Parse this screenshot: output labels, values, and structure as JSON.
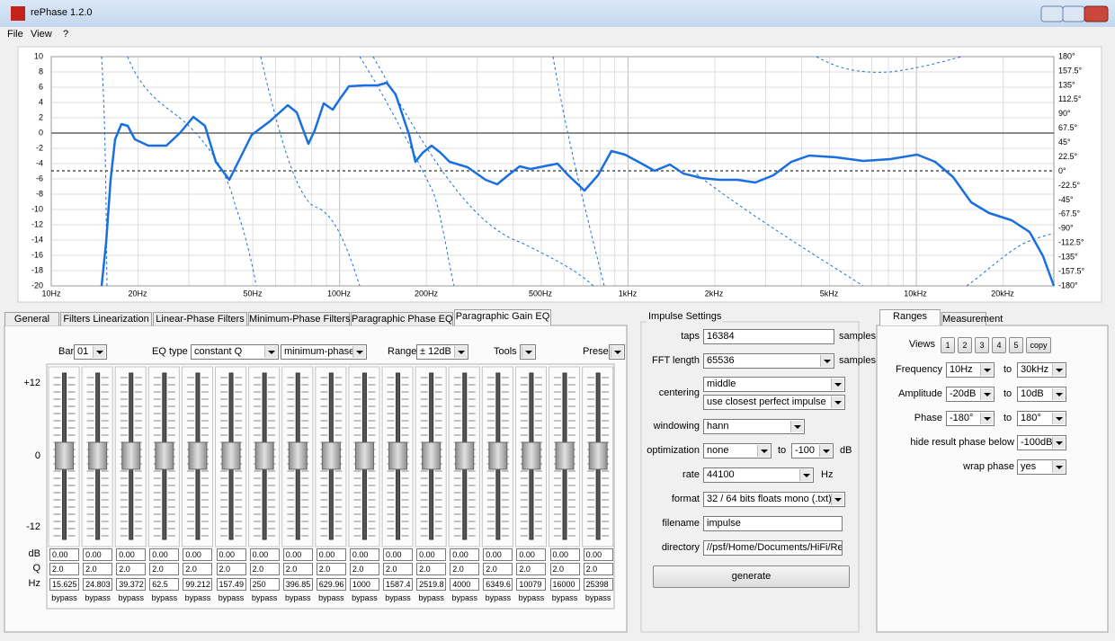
{
  "window": {
    "title": "rePhase 1.2.0",
    "menu": [
      "File",
      "View",
      "?"
    ]
  },
  "graph": {
    "amplitude_labels": [
      "10",
      "8",
      "6",
      "4",
      "2",
      "0",
      "-2",
      "-4",
      "-6",
      "-8",
      "-10",
      "-12",
      "-14",
      "-16",
      "-18",
      "-20"
    ],
    "phase_labels": [
      "180°",
      "157.5°",
      "135°",
      "112.5°",
      "90°",
      "67.5°",
      "45°",
      "22.5°",
      "0°",
      "-22.5°",
      "-45°",
      "-67.5°",
      "-90°",
      "-112.5°",
      "-135°",
      "-157.5°",
      "-180°"
    ],
    "frequency_labels": [
      "10Hz",
      "20Hz",
      "50Hz",
      "100Hz",
      "200Hz",
      "500Hz",
      "1kHz",
      "2kHz",
      "5kHz",
      "10kHz",
      "20kHz"
    ]
  },
  "tabs": [
    "General",
    "Filters Linearization",
    "Linear-Phase Filters",
    "Minimum-Phase Filters",
    "Paragraphic Phase EQ",
    "Paragraphic Gain EQ"
  ],
  "eq": {
    "bank_label": "Bank",
    "bank": "01",
    "eq_type_label": "EQ type",
    "eq_type": "constant Q",
    "phase_mode": "minimum-phase",
    "range_label": "Range",
    "range": "± 12dB",
    "tools": "Tools",
    "presets": "Presets",
    "scale": [
      "+12",
      "0",
      "-12"
    ],
    "row_labels": [
      "dB",
      "Q",
      "Hz"
    ],
    "bands": [
      {
        "db": "0.00",
        "q": "2.0",
        "hz": "15.625",
        "bypass": "bypass"
      },
      {
        "db": "0.00",
        "q": "2.0",
        "hz": "24.803",
        "bypass": "bypass"
      },
      {
        "db": "0.00",
        "q": "2.0",
        "hz": "39.372",
        "bypass": "bypass"
      },
      {
        "db": "0.00",
        "q": "2.0",
        "hz": "62.5",
        "bypass": "bypass"
      },
      {
        "db": "0.00",
        "q": "2.0",
        "hz": "99.212",
        "bypass": "bypass"
      },
      {
        "db": "0.00",
        "q": "2.0",
        "hz": "157.49",
        "bypass": "bypass"
      },
      {
        "db": "0.00",
        "q": "2.0",
        "hz": "250",
        "bypass": "bypass"
      },
      {
        "db": "0.00",
        "q": "2.0",
        "hz": "396.85",
        "bypass": "bypass"
      },
      {
        "db": "0.00",
        "q": "2.0",
        "hz": "629.96",
        "bypass": "bypass"
      },
      {
        "db": "0.00",
        "q": "2.0",
        "hz": "1000",
        "bypass": "bypass"
      },
      {
        "db": "0.00",
        "q": "2.0",
        "hz": "1587.4",
        "bypass": "bypass"
      },
      {
        "db": "0.00",
        "q": "2.0",
        "hz": "2519.8",
        "bypass": "bypass"
      },
      {
        "db": "0.00",
        "q": "2.0",
        "hz": "4000",
        "bypass": "bypass"
      },
      {
        "db": "0.00",
        "q": "2.0",
        "hz": "6349.6",
        "bypass": "bypass"
      },
      {
        "db": "0.00",
        "q": "2.0",
        "hz": "10079",
        "bypass": "bypass"
      },
      {
        "db": "0.00",
        "q": "2.0",
        "hz": "16000",
        "bypass": "bypass"
      },
      {
        "db": "0.00",
        "q": "2.0",
        "hz": "25398",
        "bypass": "bypass"
      }
    ]
  },
  "impulse": {
    "title": "Impulse Settings",
    "taps_label": "taps",
    "taps": "16384",
    "taps_unit": "samples",
    "fft_label": "FFT length",
    "fft": "65536",
    "fft_unit": "samples",
    "centering_label": "centering",
    "centering": "middle",
    "centering_mode": "use closest perfect impulse",
    "windowing_label": "windowing",
    "windowing": "hann",
    "optimization_label": "optimization",
    "optimization": "none",
    "optimization_to": "to",
    "optimization_limit": "-100",
    "optimization_unit": "dB",
    "rate_label": "rate",
    "rate": "44100",
    "rate_unit": "Hz",
    "format_label": "format",
    "format": "32 / 64 bits floats mono (.txt)",
    "filename_label": "filename",
    "filename": "impulse",
    "directory_label": "directory",
    "directory": "//psf/Home/Documents/HiFi/RePh",
    "generate": "generate"
  },
  "ranges": {
    "tabs": [
      "Ranges",
      "Measurement"
    ],
    "views_label": "Views",
    "views": [
      "1",
      "2",
      "3",
      "4",
      "5",
      "copy"
    ],
    "frequency": {
      "label": "Frequency",
      "from": "10Hz",
      "to_label": "to",
      "to": "30kHz"
    },
    "amplitude": {
      "label": "Amplitude",
      "from": "-20dB",
      "to_label": "to",
      "to": "10dB"
    },
    "phase": {
      "label": "Phase",
      "from": "-180°",
      "to_label": "to",
      "to": "180°"
    },
    "hide_label": "hide result phase below",
    "hide": "-100dB",
    "wrap_label": "wrap phase",
    "wrap": "yes"
  }
}
